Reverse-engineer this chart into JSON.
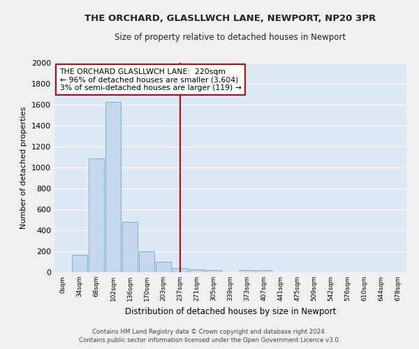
{
  "title": "THE ORCHARD, GLASLLWCH LANE, NEWPORT, NP20 3PR",
  "subtitle": "Size of property relative to detached houses in Newport",
  "xlabel": "Distribution of detached houses by size in Newport",
  "ylabel": "Number of detached properties",
  "bar_color": "#c5d8ec",
  "bar_edge_color": "#7aafd4",
  "background_color": "#dce9f5",
  "grid_color": "#ffffff",
  "fig_color": "#f0f0f0",
  "categories": [
    "0sqm",
    "34sqm",
    "68sqm",
    "102sqm",
    "136sqm",
    "170sqm",
    "203sqm",
    "237sqm",
    "271sqm",
    "305sqm",
    "339sqm",
    "373sqm",
    "407sqm",
    "441sqm",
    "475sqm",
    "509sqm",
    "542sqm",
    "576sqm",
    "610sqm",
    "644sqm",
    "678sqm"
  ],
  "values": [
    0,
    170,
    1090,
    1630,
    480,
    200,
    100,
    40,
    30,
    20,
    0,
    20,
    20,
    0,
    0,
    0,
    0,
    0,
    0,
    0,
    0
  ],
  "ylim": [
    0,
    2000
  ],
  "yticks": [
    0,
    200,
    400,
    600,
    800,
    1000,
    1200,
    1400,
    1600,
    1800,
    2000
  ],
  "property_line_x": 7,
  "annotation_line1": "THE ORCHARD GLASLLWCH LANE:  220sqm",
  "annotation_line2": "← 96% of detached houses are smaller (3,604)",
  "annotation_line3": "3% of semi-detached houses are larger (119) →",
  "annotation_box_color": "#cc0000",
  "footnote1": "Contains HM Land Registry data © Crown copyright and database right 2024.",
  "footnote2": "Contains public sector information licensed under the Open Government Licence v3.0."
}
